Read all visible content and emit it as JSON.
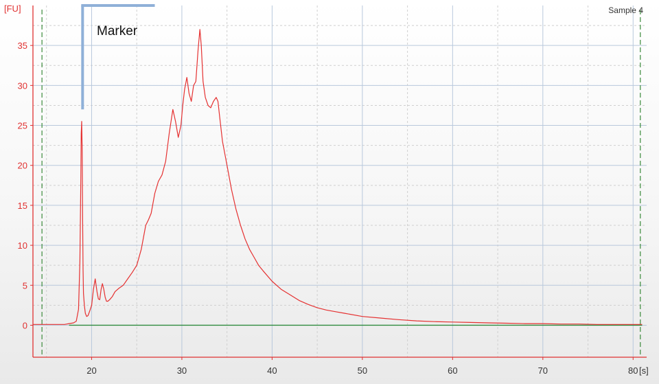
{
  "chart_data": {
    "type": "line",
    "title": "",
    "sample_label": "Sample 4",
    "y_unit": "[FU]",
    "x_unit": "[s]",
    "xlim": [
      13.5,
      81.5
    ],
    "ylim": [
      -4,
      40
    ],
    "x_ticks": [
      20,
      30,
      40,
      50,
      60,
      70,
      80
    ],
    "y_ticks": [
      0,
      5,
      10,
      15,
      20,
      25,
      30,
      35
    ],
    "grid": true,
    "colors": {
      "trace": "#e53030",
      "baseline": "#2e8b3e",
      "axis": "#e03030",
      "grid_major": "#b8c8dc",
      "grid_minor": "#cfcfcf",
      "boundary": "#3a8a3a",
      "marker": "#8fb0d8"
    },
    "baseline_segment": [
      17.5,
      81
    ],
    "boundaries": [
      14.5,
      80.8
    ],
    "marker": {
      "label": "Marker",
      "x": 19,
      "y_bottom": 27,
      "x_end": 27,
      "y_top": 40
    },
    "series": [
      {
        "x": [
          13.5,
          14,
          15,
          16,
          16.5,
          17,
          17.5,
          18,
          18.3,
          18.55,
          18.7,
          18.8,
          18.85,
          18.9,
          18.95,
          19,
          19.05,
          19.1,
          19.2,
          19.3,
          19.45,
          19.6,
          19.8,
          20,
          20.2,
          20.4,
          20.6,
          20.75,
          20.9,
          21.05,
          21.2,
          21.35,
          21.5,
          21.65,
          21.8,
          22,
          22.3,
          22.6,
          23,
          23.5,
          24,
          24.5,
          25,
          25.5,
          26,
          26.3,
          26.6,
          27,
          27.4,
          27.8,
          28.2,
          28.6,
          29,
          29.3,
          29.6,
          29.9,
          30.1,
          30.3,
          30.55,
          30.8,
          31.05,
          31.3,
          31.55,
          31.8,
          32,
          32.15,
          32.35,
          32.6,
          32.9,
          33.2,
          33.5,
          33.8,
          34,
          34.2,
          34.5,
          35,
          35.5,
          36,
          36.5,
          37,
          37.5,
          38,
          38.5,
          39,
          40,
          41,
          42,
          43,
          44,
          45,
          46,
          47,
          48,
          50,
          52,
          54,
          56,
          58,
          60,
          62,
          64,
          66,
          68,
          70,
          72,
          74,
          76,
          78,
          80,
          81
        ],
        "y": [
          0.1,
          0.1,
          0.1,
          0.1,
          0.1,
          0.1,
          0.2,
          0.3,
          0.5,
          2,
          8,
          18,
          24,
          25.5,
          22,
          14,
          7,
          4,
          2.5,
          1.5,
          1.1,
          1.2,
          1.8,
          2.5,
          4.5,
          5.8,
          4.2,
          3.3,
          3.2,
          4.5,
          5.2,
          4.5,
          3.5,
          3,
          3,
          3.2,
          3.6,
          4.2,
          4.6,
          5,
          5.8,
          6.6,
          7.5,
          9.5,
          12.5,
          13.2,
          14,
          16.5,
          18,
          18.8,
          20.5,
          24,
          27,
          25.5,
          23.5,
          25,
          27.5,
          29.5,
          31,
          29,
          28,
          30,
          30.5,
          34.5,
          37,
          35,
          30.5,
          28.5,
          27.5,
          27.2,
          28,
          28.5,
          28,
          26,
          23,
          20,
          17,
          14.5,
          12.5,
          10.8,
          9.5,
          8.5,
          7.5,
          6.8,
          5.5,
          4.5,
          3.8,
          3.1,
          2.6,
          2.2,
          1.9,
          1.7,
          1.5,
          1.1,
          0.9,
          0.7,
          0.55,
          0.45,
          0.4,
          0.35,
          0.3,
          0.25,
          0.2,
          0.2,
          0.15,
          0.15,
          0.1,
          0.1,
          0.1,
          0.1
        ]
      }
    ]
  }
}
